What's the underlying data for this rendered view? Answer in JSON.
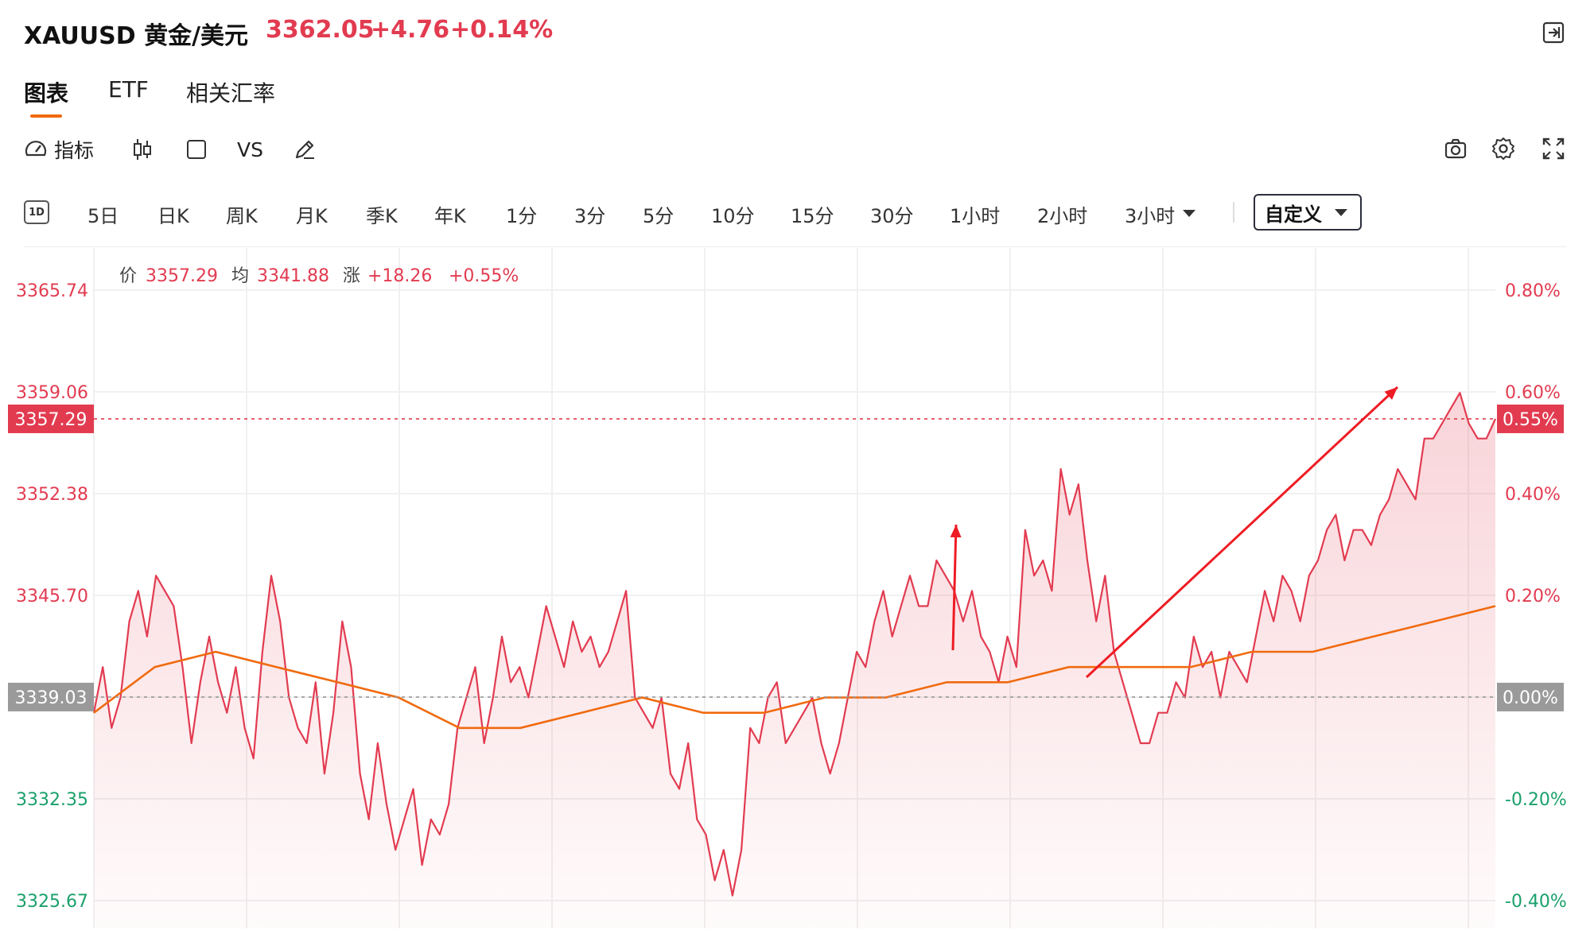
{
  "header": {
    "symbol": "XAUUSD 黄金/美元",
    "price": "3362.05",
    "change": "+4.76",
    "change_pct": "+0.14%"
  },
  "tabs": [
    {
      "label": "图表",
      "active": true
    },
    {
      "label": "ETF",
      "active": false
    },
    {
      "label": "相关汇率",
      "active": false
    }
  ],
  "toolbar": {
    "indicators_label": "指标",
    "vs_label": "VS"
  },
  "timeframes": {
    "badge": "1D",
    "items": [
      "5日",
      "日K",
      "周K",
      "月K",
      "季K",
      "年K",
      "1分",
      "3分",
      "5分",
      "10分",
      "15分",
      "30分",
      "1小时",
      "2小时",
      "3小时"
    ],
    "custom_label": "自定义"
  },
  "info_bar": {
    "price_label": "价",
    "price_value": "3357.29",
    "avg_label": "均",
    "avg_value": "3341.88",
    "change_label": "涨",
    "change_value": "+18.26",
    "change_pct": "+0.55%"
  },
  "colors": {
    "up": "#e23b50",
    "down": "#1aa06b",
    "avg_line": "#f06a0f",
    "accent": "#f06a0f",
    "badge_gray": "#9a9a9a"
  },
  "chart_data": {
    "type": "area",
    "title": "",
    "xlabel": "",
    "ylabel": "",
    "ylim": [
      3325.67,
      3365.74
    ],
    "y_ticks_left": [
      "3365.74",
      "3359.06",
      "3352.38",
      "3345.70",
      "3339.03",
      "3332.35",
      "3325.67"
    ],
    "y_ticks_right": [
      "0.80%",
      "0.60%",
      "0.40%",
      "0.20%",
      "0.00%",
      "-0.20%",
      "-0.40%"
    ],
    "prev_close": "3339.03",
    "last_price": "3357.29",
    "last_pct": "0.55%",
    "grid": true,
    "series": [
      {
        "kind": "price",
        "values": [
          3338,
          3341,
          3337,
          3339,
          3344,
          3346,
          3343,
          3347,
          3346,
          3345,
          3341,
          3336,
          3340,
          3343,
          3340,
          3338,
          3341,
          3337,
          3335,
          3342,
          3347,
          3344,
          3339,
          3337,
          3336,
          3340,
          3334,
          3338,
          3344,
          3341,
          3334,
          3331,
          3336,
          3332,
          3329,
          3331,
          3333,
          3328,
          3331,
          3330,
          3332,
          3337,
          3339,
          3341,
          3336,
          3339,
          3343,
          3340,
          3341,
          3339,
          3342,
          3345,
          3343,
          3341,
          3344,
          3342,
          3343,
          3341,
          3342,
          3344,
          3346,
          3339,
          3338,
          3337,
          3339,
          3334,
          3333,
          3336,
          3331,
          3330,
          3327,
          3329,
          3326,
          3329,
          3337,
          3336,
          3339,
          3340,
          3336,
          3337,
          3338,
          3339,
          3336,
          3334,
          3336,
          3339,
          3342,
          3341,
          3344,
          3346,
          3343,
          3345,
          3347,
          3345,
          3345,
          3348,
          3347,
          3346,
          3344,
          3346,
          3343,
          3342,
          3340,
          3343,
          3341,
          3350,
          3347,
          3348,
          3346,
          3354,
          3351,
          3353,
          3348,
          3344,
          3347,
          3342,
          3340,
          3338,
          3336,
          3336,
          3338,
          3338,
          3340,
          3339,
          3343,
          3341,
          3342,
          3339,
          3342,
          3341,
          3340,
          3343,
          3346,
          3344,
          3347,
          3346,
          3344,
          3347,
          3348,
          3350,
          3351,
          3348,
          3350,
          3350,
          3349,
          3351,
          3352,
          3354,
          3353,
          3352,
          3356,
          3356,
          3357,
          3358,
          3359,
          3357,
          3356,
          3356,
          3357.29
        ],
        "last": 3357.29
      },
      {
        "kind": "average",
        "values": [
          3338,
          3341,
          3342,
          3341,
          3340,
          3339,
          3337,
          3337,
          3338,
          3339,
          3338,
          3338,
          3339,
          3339,
          3340,
          3340,
          3341,
          3341,
          3341,
          3342,
          3342,
          3343,
          3344,
          3345
        ],
        "last": 3341.88
      }
    ],
    "annotations": [
      "arrow-up-1",
      "arrow-up-2"
    ]
  }
}
